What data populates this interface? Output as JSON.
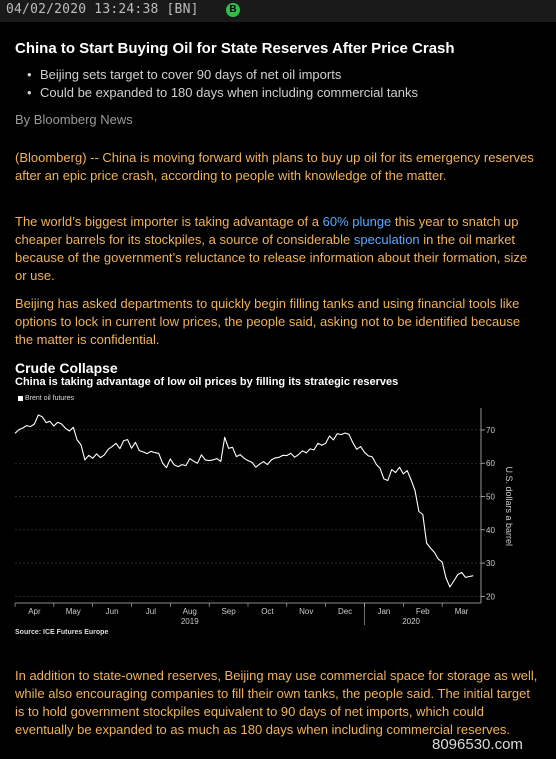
{
  "header": {
    "timestamp": "04/02/2020 13:24:38 [BN]",
    "badge": "B"
  },
  "article": {
    "headline": "China to Start Buying Oil for State Reserves After Price Crash",
    "bullets": [
      "Beijing sets target to cover 90 days of net oil imports",
      "Could be expanded to 180 days when including commercial tanks"
    ],
    "byline": "By Bloomberg News",
    "p1": "(Bloomberg) -- China is moving forward with plans to buy up oil for its emergency reserves after an epic price crash, according to people with knowledge of the matter.",
    "p2_a": "The world’s biggest importer is taking advantage of a ",
    "p2_link1": "60% plunge",
    "p2_b": " this year to snatch up cheaper barrels for its stockpiles, a source of considerable ",
    "p2_link2": "speculation",
    "p2_c": " in the oil market because of the government’s reluctance to release information about their formation, size or use.",
    "p3": "Beijing has asked departments to quickly begin filling tanks and using financial tools like options to lock in current low prices, the people said, asking not to be identified because the matter is confidential.",
    "p4": "In addition to state-owned reserves, Beijing may use commercial space for storage as well, while also encouraging companies to fill their own tanks, the people said. The initial target is to hold government stockpiles equivalent to 90 days of net imports, which could eventually be expanded to as much as 180 days when including commercial reserves."
  },
  "watermark": "8096530.com",
  "chart_data": {
    "type": "line",
    "title": "Crude Collapse",
    "subtitle": "China is taking advantage of low oil prices by filling its strategic reserves",
    "legend": [
      "Brent oil futures"
    ],
    "ylabel": "U.S. dollars a barrel",
    "source": "Source: ICE Futures Europe",
    "ylim": [
      18,
      76
    ],
    "yticks": [
      20,
      30,
      40,
      50,
      60,
      70
    ],
    "xticks": [
      "Apr",
      "May",
      "Jun",
      "Jul",
      "Aug",
      "Sep",
      "Oct",
      "Nov",
      "Dec",
      "Jan",
      "Feb",
      "Mar"
    ],
    "year_labels": [
      "2019",
      "2020"
    ],
    "colors": {
      "line": "#ffffff",
      "grid": "#444444",
      "axis": "#bbbbbb"
    },
    "series": [
      {
        "name": "Brent oil futures",
        "x": [
          0.0,
          0.1,
          0.2,
          0.3,
          0.4,
          0.5,
          0.6,
          0.7,
          0.8,
          0.9,
          1.0,
          1.1,
          1.2,
          1.3,
          1.4,
          1.5,
          1.6,
          1.7,
          1.8,
          1.9,
          2.0,
          2.1,
          2.2,
          2.3,
          2.4,
          2.5,
          2.6,
          2.7,
          2.8,
          2.9,
          3.0,
          3.1,
          3.2,
          3.3,
          3.4,
          3.5,
          3.6,
          3.7,
          3.8,
          3.9,
          4.0,
          4.1,
          4.2,
          4.3,
          4.4,
          4.5,
          4.6,
          4.7,
          4.8,
          4.9,
          5.0,
          5.1,
          5.2,
          5.3,
          5.4,
          5.5,
          5.6,
          5.7,
          5.8,
          5.9,
          6.0,
          6.1,
          6.2,
          6.3,
          6.4,
          6.5,
          6.6,
          6.7,
          6.8,
          6.9,
          7.0,
          7.1,
          7.2,
          7.3,
          7.4,
          7.5,
          7.6,
          7.7,
          7.8,
          7.9,
          8.0,
          8.1,
          8.2,
          8.3,
          8.4,
          8.5,
          8.6,
          8.7,
          8.8,
          8.9,
          9.0,
          9.1,
          9.2,
          9.3,
          9.4,
          9.5,
          9.6,
          9.7,
          9.8,
          9.9,
          10.0,
          10.1,
          10.2,
          10.3,
          10.4,
          10.5,
          10.6,
          10.7,
          10.8,
          10.9,
          11.0,
          11.1,
          11.2,
          11.3,
          11.4,
          11.5,
          11.6,
          11.8
        ],
        "values": [
          69.0,
          70.1,
          70.6,
          71.3,
          71.0,
          71.8,
          74.5,
          74.0,
          72.2,
          72.6,
          71.2,
          72.3,
          71.8,
          70.5,
          69.7,
          70.8,
          67.0,
          65.5,
          61.0,
          62.4,
          61.5,
          62.8,
          61.7,
          62.5,
          64.2,
          65.0,
          66.0,
          64.4,
          66.8,
          67.1,
          64.5,
          66.3,
          63.8,
          63.4,
          62.9,
          63.6,
          63.2,
          63.0,
          60.0,
          58.7,
          61.3,
          59.5,
          59.0,
          59.6,
          59.3,
          61.4,
          60.6,
          60.0,
          62.5,
          61.0,
          60.8,
          61.0,
          61.4,
          60.5,
          67.8,
          64.5,
          64.8,
          62.0,
          62.6,
          61.5,
          60.8,
          60.3,
          58.8,
          59.7,
          60.5,
          59.6,
          61.0,
          61.6,
          61.8,
          62.4,
          62.3,
          63.0,
          61.8,
          62.6,
          63.7,
          63.1,
          64.3,
          64.0,
          66.0,
          65.4,
          66.0,
          68.2,
          67.0,
          68.9,
          68.6,
          69.1,
          68.7,
          66.2,
          64.2,
          65.0,
          63.3,
          62.2,
          61.9,
          59.7,
          58.5,
          55.3,
          54.8,
          58.1,
          57.2,
          58.8,
          56.8,
          57.8,
          55.0,
          51.8,
          45.5,
          44.6,
          36.0,
          34.5,
          33.2,
          31.2,
          30.3,
          25.5,
          22.8,
          24.6,
          26.5,
          27.2,
          25.7,
          26.2
        ]
      }
    ]
  }
}
